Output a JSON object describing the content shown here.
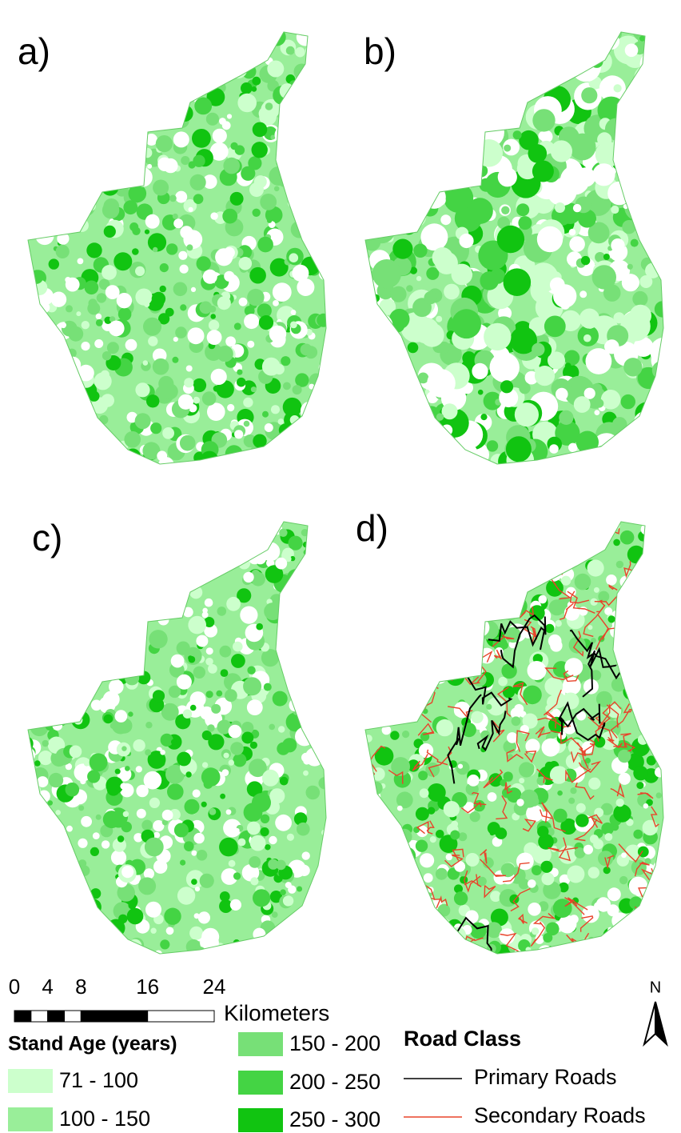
{
  "panels": [
    {
      "label": "a)"
    },
    {
      "label": "b)"
    },
    {
      "label": "c)"
    },
    {
      "label": "d)"
    }
  ],
  "scale_bar": {
    "ticks": [
      0,
      4,
      8,
      16,
      24
    ],
    "unit": "Kilometers"
  },
  "north_arrow": "N",
  "legend": {
    "stand_age": {
      "title": "Stand Age (years)",
      "classes": [
        {
          "label": "71 - 100",
          "color": "#ccffcc"
        },
        {
          "label": "100 - 150",
          "color": "#99ee99"
        },
        {
          "label": "150 - 200",
          "color": "#77e077"
        },
        {
          "label": "200 - 250",
          "color": "#44d444"
        },
        {
          "label": "250 - 300",
          "color": "#11c411"
        }
      ]
    },
    "road_class": {
      "title": "Road Class",
      "classes": [
        {
          "label": "Primary Roads",
          "color": "#000000"
        },
        {
          "label": "Secondary Roads",
          "color": "#e8432a"
        }
      ]
    }
  }
}
